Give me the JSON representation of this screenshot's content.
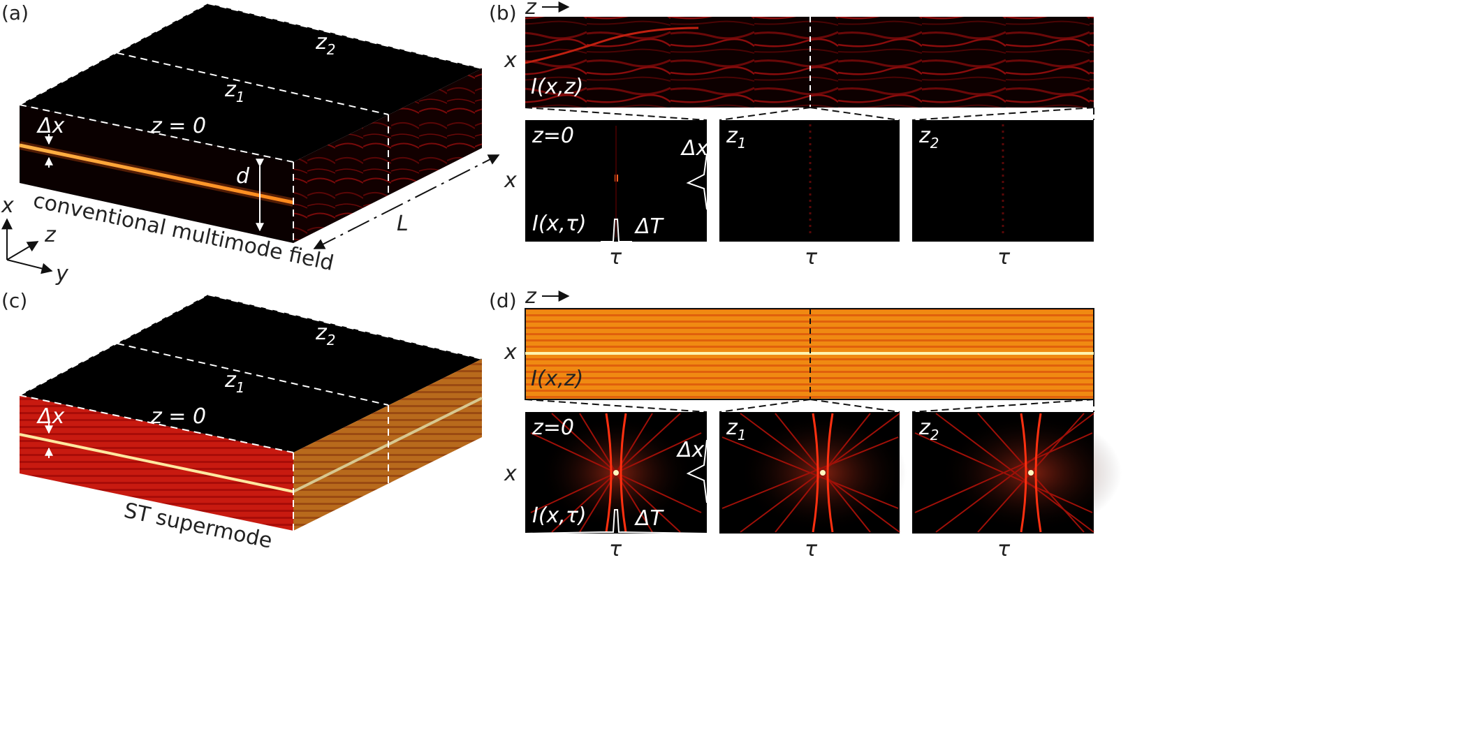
{
  "panel_labels": {
    "a": "(a)",
    "b": "(b)",
    "c": "(c)",
    "d": "(d)"
  },
  "slab_a": {
    "top_labels": {
      "z0": "z = 0",
      "z1": "z1",
      "z2": "z2"
    },
    "dx_label": "Δx",
    "d_label": "d",
    "L_label": "L",
    "caption": "conventional multimode field"
  },
  "slab_c": {
    "top_labels": {
      "z0": "z = 0",
      "z1": "z1",
      "z2": "z2"
    },
    "dx_label": "Δx",
    "caption": "ST supermode"
  },
  "axes_triad": {
    "x": "x",
    "y": "y",
    "z": "z"
  },
  "panel_b": {
    "z_arrow_label": "z",
    "x_label": "x",
    "map_label": "I(x,z)",
    "sub_labels": {
      "p1": "z=0",
      "p2": "z1",
      "p3": "z2"
    },
    "sub_x_label": "x",
    "sub_map_label": "I(x,τ)",
    "dx_label": "Δx",
    "dt_label": "ΔT",
    "tau_label": "τ"
  },
  "panel_d": {
    "z_arrow_label": "z",
    "x_label": "x",
    "map_label": "I(x,z)",
    "sub_labels": {
      "p1": "z=0",
      "p2": "z1",
      "p3": "z2"
    },
    "sub_x_label": "x",
    "sub_map_label": "I(x,τ)",
    "dx_label": "Δx",
    "dt_label": "ΔT",
    "tau_label": "τ"
  },
  "colors": {
    "background": "#000000",
    "hot_core": "#fff3a0",
    "orange": "#f08a12",
    "red": "#b01010",
    "dark_red": "#3a0000"
  }
}
